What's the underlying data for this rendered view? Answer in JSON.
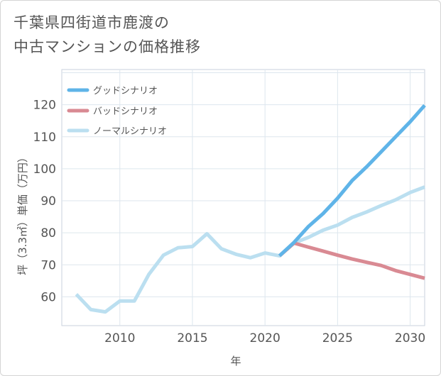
{
  "title": {
    "line1": "千葉県四街道市鹿渡の",
    "line2": "中古マンションの価格推移"
  },
  "chart_data": {
    "type": "line",
    "xlabel": "年",
    "ylabel": "坪（3.3㎡）単価（万円）",
    "xlim": [
      2006,
      2031
    ],
    "ylim": [
      51,
      131
    ],
    "x_ticks": [
      2010,
      2015,
      2020,
      2025,
      2030
    ],
    "y_ticks": [
      60,
      70,
      80,
      90,
      100,
      110,
      120
    ],
    "x_grid": [
      2010,
      2015,
      2020,
      2025,
      2030
    ],
    "y_grid": [
      60,
      70,
      80,
      90,
      100,
      110,
      120,
      130
    ],
    "legend_position": "top-left",
    "series": [
      {
        "name": "グッドシナリオ",
        "color": "#5fb4e8",
        "x": [
          2021,
          2022,
          2023,
          2024,
          2025,
          2026,
          2027,
          2028,
          2029,
          2030,
          2031
        ],
        "values": [
          72.8,
          77.0,
          82.0,
          86.0,
          90.8,
          96.3,
          100.6,
          105.3,
          110.0,
          114.7,
          119.8
        ]
      },
      {
        "name": "バッドシナリオ",
        "color": "#d98a93",
        "x": [
          2021,
          2022,
          2023,
          2024,
          2025,
          2026,
          2027,
          2028,
          2029,
          2030,
          2031
        ],
        "values": [
          72.8,
          76.8,
          75.5,
          74.3,
          73.0,
          71.8,
          70.8,
          69.8,
          68.2,
          67.0,
          65.8
        ]
      },
      {
        "name": "ノーマルシナリオ",
        "color": "#bbdff0",
        "x": [
          2007,
          2008,
          2009,
          2010,
          2011,
          2012,
          2013,
          2014,
          2015,
          2016,
          2017,
          2018,
          2019,
          2020,
          2021,
          2022,
          2023,
          2024,
          2025,
          2026,
          2027,
          2028,
          2029,
          2030,
          2031
        ],
        "values": [
          60.8,
          56.0,
          55.3,
          58.7,
          58.7,
          67.0,
          73.0,
          75.3,
          75.7,
          79.7,
          75.0,
          73.3,
          72.2,
          73.7,
          72.8,
          76.8,
          78.6,
          80.8,
          82.4,
          84.8,
          86.5,
          88.5,
          90.3,
          92.6,
          94.3
        ]
      }
    ]
  }
}
